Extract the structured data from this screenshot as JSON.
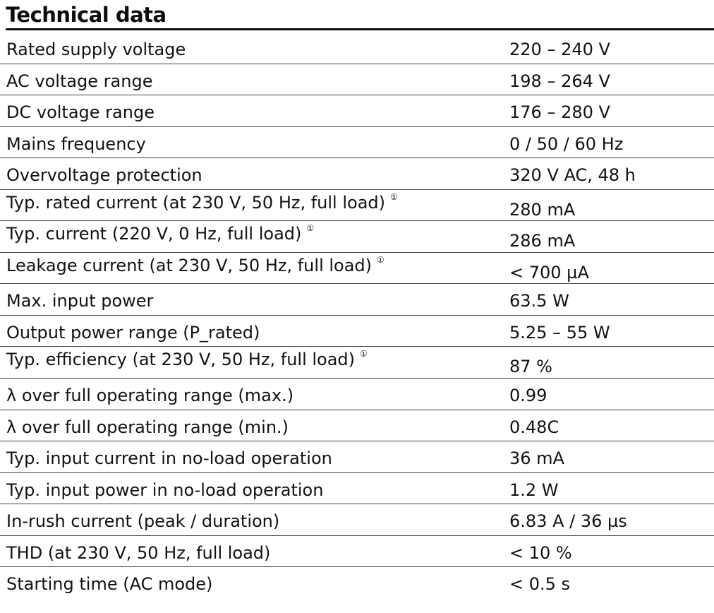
{
  "title": "Technical data",
  "rows": [
    {
      "label": "Rated supply voltage",
      "value": "220 – 240 V",
      "note": ""
    },
    {
      "label": "AC voltage range",
      "value": "198 – 264 V",
      "note": ""
    },
    {
      "label": "DC voltage range",
      "value": "176 – 280 V",
      "note": ""
    },
    {
      "label": "Mains frequency",
      "value": "0 / 50 / 60 Hz",
      "note": ""
    },
    {
      "label": "Overvoltage protection",
      "value": "320 V AC, 48 h",
      "note": ""
    },
    {
      "label": "Typ. rated current (at 230 V, 50 Hz, full load)",
      "value": "280 mA",
      "note": "①"
    },
    {
      "label": "Typ. current (220 V, 0 Hz, full load)",
      "value": "286 mA",
      "note": "①"
    },
    {
      "label": "Leakage current (at 230 V, 50 Hz, full load)",
      "value": "< 700 µA",
      "note": "①"
    },
    {
      "label": "Max. input power",
      "value": "63.5 W",
      "note": ""
    },
    {
      "label": "Output power range (P_rated)",
      "value": "5.25 – 55 W",
      "note": ""
    },
    {
      "label": "Typ. efficiency (at 230 V, 50 Hz, full load)",
      "value": "87 %",
      "note": "①"
    },
    {
      "label": "λ over full operating range (max.)",
      "value": "0.99",
      "note": ""
    },
    {
      "label": "λ over full operating range (min.)",
      "value": "0.48C",
      "note": ""
    },
    {
      "label": "Typ. input current in no-load operation",
      "value": "36 mA",
      "note": ""
    },
    {
      "label": "Typ. input power in no-load operation",
      "value": "1.2 W",
      "note": ""
    },
    {
      "label": "In-rush current (peak / duration)",
      "value": "6.83 A / 36 µs",
      "note": ""
    },
    {
      "label": "THD (at 230 V, 50 Hz, full load)",
      "value": "< 10 %",
      "note": ""
    },
    {
      "label": "Starting time (AC mode)",
      "value": "< 0.5 s",
      "note": ""
    }
  ]
}
